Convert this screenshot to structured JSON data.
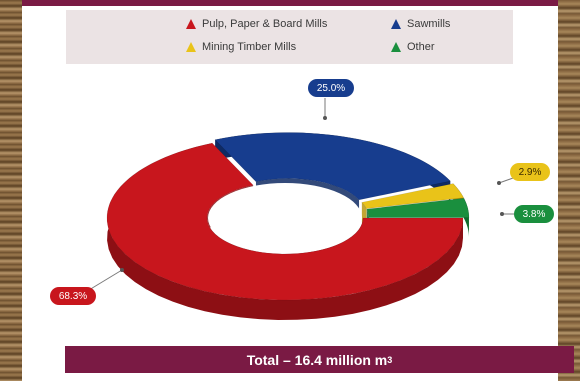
{
  "chart_data": {
    "type": "pie",
    "title": "",
    "series": [
      {
        "name": "Pulp, Paper & Board Mills",
        "value": 68.3,
        "label": "68.3%",
        "color": "#c8161d",
        "side": "#8d0f14"
      },
      {
        "name": "Sawmills",
        "value": 25.0,
        "label": "25.0%",
        "color": "#173d8e",
        "side": "#0f2a63"
      },
      {
        "name": "Mining Timber Mills",
        "value": 2.9,
        "label": "2.9%",
        "color": "#e9c319",
        "side": "#b89810"
      },
      {
        "name": "Other",
        "value": 3.8,
        "label": "3.8%",
        "color": "#1a8f3e",
        "side": "#116a2c"
      }
    ],
    "legend_position": "top"
  },
  "footer": {
    "total_prefix": "Total – 16.4 million m",
    "total_sup": "3"
  }
}
